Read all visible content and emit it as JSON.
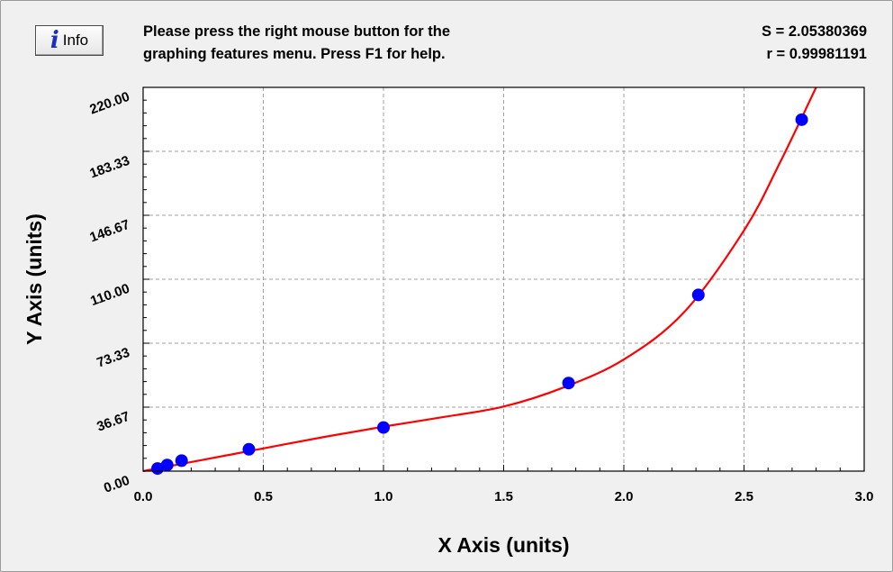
{
  "info_button": {
    "label": "Info",
    "icon": "info-icon"
  },
  "message": {
    "line1": "Please press the right mouse button for the",
    "line2": "graphing features menu.  Press F1 for help."
  },
  "stats": {
    "s": "S = 2.05380369",
    "r": "r = 0.99981191"
  },
  "chart_data": {
    "type": "scatter",
    "xlabel": "X Axis (units)",
    "ylabel": "Y Axis (units)",
    "xlim": [
      0,
      3
    ],
    "ylim": [
      0,
      220
    ],
    "x_ticks": [
      "0.0",
      "0.5",
      "1.0",
      "1.5",
      "2.0",
      "2.5",
      "3.0"
    ],
    "y_ticks": [
      "0.00",
      "36.67",
      "73.33",
      "110.00",
      "146.67",
      "183.33",
      "220.00"
    ],
    "grid": true,
    "points": [
      {
        "x": 0.06,
        "y": 1.5
      },
      {
        "x": 0.1,
        "y": 3.5
      },
      {
        "x": 0.16,
        "y": 6.0
      },
      {
        "x": 0.44,
        "y": 12.5
      },
      {
        "x": 1.0,
        "y": 25.0
      },
      {
        "x": 1.77,
        "y": 50.5
      },
      {
        "x": 2.31,
        "y": 101.0
      },
      {
        "x": 2.74,
        "y": 201.5
      }
    ],
    "fit_curve": [
      {
        "x": 0.0,
        "y": 0.0
      },
      {
        "x": 0.25,
        "y": 6.5
      },
      {
        "x": 0.5,
        "y": 13.0
      },
      {
        "x": 0.75,
        "y": 19.5
      },
      {
        "x": 1.0,
        "y": 25.5
      },
      {
        "x": 1.25,
        "y": 31.0
      },
      {
        "x": 1.5,
        "y": 37.0
      },
      {
        "x": 1.75,
        "y": 48.0
      },
      {
        "x": 2.0,
        "y": 64.0
      },
      {
        "x": 2.25,
        "y": 91.0
      },
      {
        "x": 2.5,
        "y": 138.0
      },
      {
        "x": 2.65,
        "y": 177.0
      },
      {
        "x": 2.8,
        "y": 222.0
      }
    ],
    "point_color": "#0000ff",
    "curve_color": "#ff0000",
    "grid_color": "#a0a0a0"
  }
}
